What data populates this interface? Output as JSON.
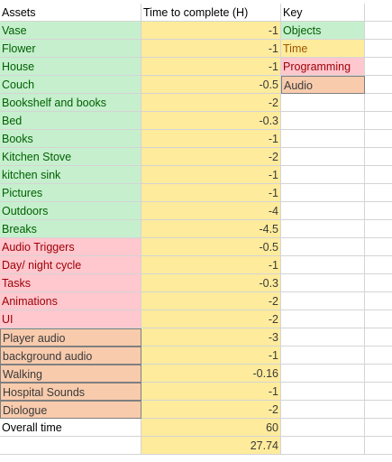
{
  "headers": {
    "assets": "Assets",
    "time": "Time to complete (H)",
    "key": "Key"
  },
  "rows": [
    {
      "asset": "Vase",
      "time": "-1",
      "key": "Objects"
    },
    {
      "asset": "Flower",
      "time": "-1",
      "key": "Time"
    },
    {
      "asset": "House",
      "time": "-1",
      "key": "Programming"
    },
    {
      "asset": "Couch",
      "time": "-0.5",
      "key": "Audio"
    },
    {
      "asset": "Bookshelf and books",
      "time": "-2",
      "key": ""
    },
    {
      "asset": "Bed",
      "time": "-0.3",
      "key": ""
    },
    {
      "asset": "Books",
      "time": "-1",
      "key": ""
    },
    {
      "asset": "Kitchen Stove",
      "time": "-2",
      "key": ""
    },
    {
      "asset": "kitchen sink",
      "time": "-1",
      "key": ""
    },
    {
      "asset": "Pictures",
      "time": "-1",
      "key": ""
    },
    {
      "asset": "Outdoors",
      "time": "-4",
      "key": ""
    },
    {
      "asset": "Breaks",
      "time": "-4.5",
      "key": ""
    },
    {
      "asset": "Audio Triggers",
      "time": "-0.5",
      "key": ""
    },
    {
      "asset": "Day/ night cycle",
      "time": "-1",
      "key": ""
    },
    {
      "asset": "Tasks",
      "time": "-0.3",
      "key": ""
    },
    {
      "asset": "Animations",
      "time": "-2",
      "key": ""
    },
    {
      "asset": "UI",
      "time": "-2",
      "key": ""
    },
    {
      "asset": "Player audio",
      "time": "-3",
      "key": ""
    },
    {
      "asset": "background audio",
      "time": "-1",
      "key": ""
    },
    {
      "asset": "Walking",
      "time": "-0.16",
      "key": ""
    },
    {
      "asset": "Hospital Sounds",
      "time": "-1",
      "key": ""
    },
    {
      "asset": "Diologue",
      "time": "-2",
      "key": ""
    },
    {
      "asset": "Overall time",
      "time": "60",
      "key": ""
    },
    {
      "asset": "",
      "time": "27.74",
      "key": ""
    }
  ],
  "category_colors": {
    "objects": "#c6efce",
    "time": "#ffeb9c",
    "programming": "#ffc7ce",
    "audio": "#f8cbad"
  }
}
